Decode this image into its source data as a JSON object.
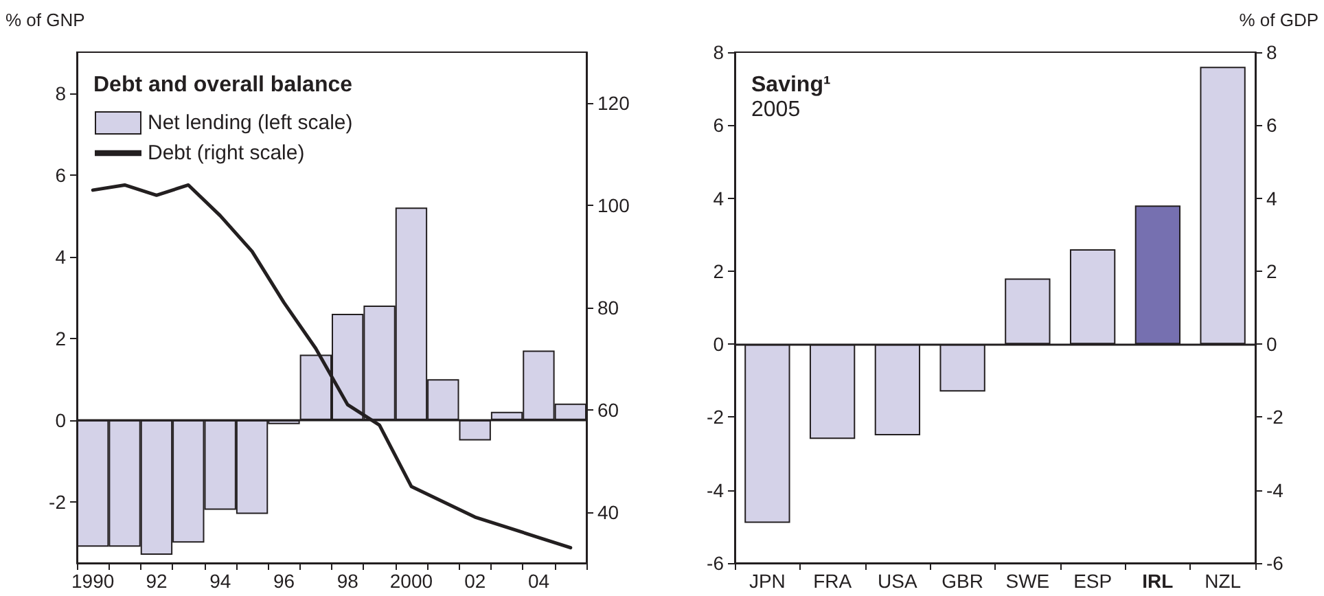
{
  "chart_data": [
    {
      "type": "bar",
      "title": "Debt and overall balance",
      "ylabel": "% of GNP",
      "categories": [
        "1990",
        null,
        "92",
        null,
        "94",
        null,
        "96",
        null,
        "98",
        null,
        "2000",
        null,
        "02",
        null,
        "04",
        null
      ],
      "series": [
        {
          "name": "Net lending (left scale)",
          "type": "bar",
          "color": "#d4d2e8",
          "values": [
            -3.1,
            -3.1,
            -3.3,
            -3.0,
            -2.2,
            -2.3,
            -0.1,
            1.6,
            2.6,
            2.8,
            5.2,
            1.0,
            -0.5,
            0.2,
            1.7,
            0.4
          ]
        },
        {
          "name": "Debt (right scale)",
          "type": "line",
          "axis": "y2",
          "color": "#231f20",
          "values": [
            103,
            104,
            102,
            104,
            98,
            91,
            81,
            72,
            61,
            57,
            45,
            42,
            39,
            37,
            35,
            33
          ]
        }
      ],
      "ylim": [
        -3.5,
        9
      ],
      "yticks": [
        -2,
        0,
        2,
        4,
        6,
        8
      ],
      "y2lim": [
        30,
        130
      ],
      "y2ticks": [
        40,
        60,
        80,
        100,
        120
      ],
      "ref_lines": [
        {
          "axis": "y",
          "value": 0
        }
      ],
      "legend": "top left",
      "marker": "none",
      "line_style": "solid",
      "grid": false
    },
    {
      "type": "bar",
      "title": "Saving¹",
      "subtitle": "2005",
      "y2label": "% of GDP",
      "categories": [
        "JPN",
        "FRA",
        "USA",
        "GBR",
        "SWE",
        "ESP",
        "IRL",
        "NZL"
      ],
      "values": [
        -4.9,
        -2.6,
        -2.5,
        -1.3,
        1.8,
        2.6,
        3.8,
        7.6
      ],
      "colors": [
        "#d4d2e8",
        "#d4d2e8",
        "#d4d2e8",
        "#d4d2e8",
        "#d4d2e8",
        "#d4d2e8",
        "#7670b0",
        "#d4d2e8"
      ],
      "ylim": [
        -6,
        8
      ],
      "yticks": [
        -6,
        -4,
        -2,
        0,
        2,
        4,
        6,
        8
      ],
      "y2lim": [
        -6,
        8
      ],
      "y2ticks": [
        -6,
        -4,
        -2,
        0,
        2,
        4,
        6,
        8
      ],
      "ref_lines": [
        {
          "axis": "y",
          "value": 0
        }
      ],
      "grid": false
    }
  ]
}
